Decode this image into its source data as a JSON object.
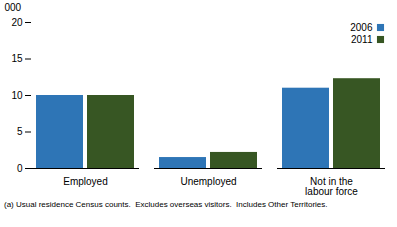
{
  "chart_data": {
    "type": "bar",
    "categories": [
      "Employed",
      "Unemployed",
      "Not in the\nlabour force"
    ],
    "series": [
      {
        "name": "2006",
        "color": "#2E75B6",
        "values": [
          10.0,
          1.5,
          11.0
        ]
      },
      {
        "name": "2011",
        "color": "#375623",
        "values": [
          10.0,
          2.2,
          12.3
        ]
      }
    ],
    "ylabel": "000",
    "ylim": [
      0,
      20
    ],
    "yticks": [
      0,
      5,
      10,
      15,
      20
    ],
    "grid": false,
    "legend": "upper right",
    "caption": "(a) Usual residence Census counts.  Excludes overseas visitors.  Includes Other Territories."
  }
}
